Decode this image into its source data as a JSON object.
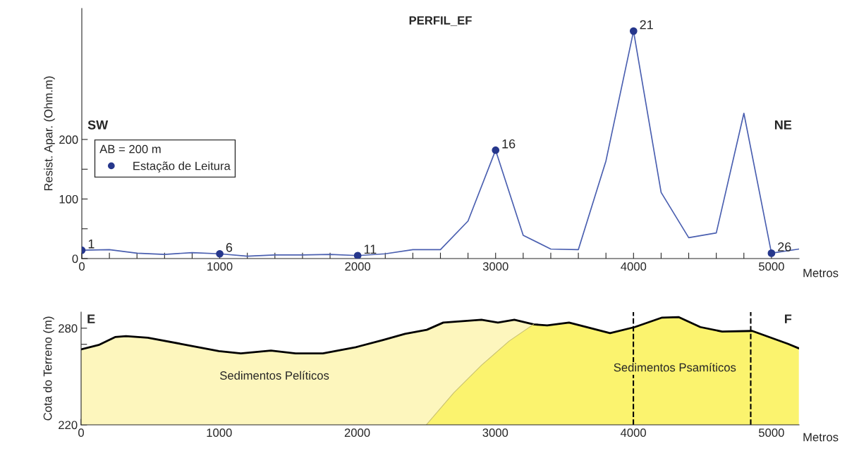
{
  "chart_data": [
    {
      "type": "line",
      "title": "PERFIL_EF",
      "ylabel": "Resist. Apar. (Ohm.m)",
      "xlabel": "Metros",
      "legend_title": "AB = 200 m",
      "legend": "left",
      "grid": false,
      "xlim": [
        0,
        5200
      ],
      "ylim": [
        0,
        420
      ],
      "xticks": [
        0,
        {
          "value": 200,
          "label": null
        },
        {
          "value": 400,
          "label": null
        },
        {
          "value": 600,
          "label": null
        },
        {
          "value": 800,
          "label": null
        },
        1000,
        {
          "value": 1200,
          "label": null
        },
        {
          "value": 1400,
          "label": null
        },
        {
          "value": 1600,
          "label": null
        },
        {
          "value": 1800,
          "label": null
        },
        2000,
        {
          "value": 2200,
          "label": null
        },
        {
          "value": 2400,
          "label": null
        },
        {
          "value": 2600,
          "label": null
        },
        {
          "value": 2800,
          "label": null
        },
        3000,
        {
          "value": 3200,
          "label": null
        },
        {
          "value": 3400,
          "label": null
        },
        {
          "value": 3600,
          "label": null
        },
        {
          "value": 3800,
          "label": null
        },
        4000,
        {
          "value": 4200,
          "label": null
        },
        {
          "value": 4400,
          "label": null
        },
        {
          "value": 4600,
          "label": null
        },
        {
          "value": 4800,
          "label": null
        },
        5000
      ],
      "yticks": [
        0,
        {
          "value": 50,
          "label": null
        },
        100,
        {
          "value": 150,
          "label": null
        },
        200
      ],
      "series": [
        {
          "type": "line",
          "color": "#4a5fb0",
          "marker": "none",
          "x": [
            0,
            200,
            400,
            600,
            800,
            1000,
            1200,
            1400,
            1600,
            1800,
            2000,
            2200,
            2400,
            2600,
            2800,
            3000,
            3200,
            3400,
            3600,
            3800,
            4000,
            4200,
            4400,
            4600,
            4800,
            5000,
            5200
          ],
          "values": [
            14,
            15,
            9,
            7,
            10,
            8,
            4,
            6,
            6,
            7,
            5,
            8,
            15,
            15,
            63,
            182,
            39,
            16,
            15,
            164,
            382,
            111,
            35,
            43,
            244,
            9,
            16
          ]
        },
        {
          "type": "scatter",
          "name": "Estação de Leitura",
          "color": "#26378c",
          "marker": "circle",
          "x": [
            0,
            1000,
            2000,
            3000,
            4000,
            5000
          ],
          "values": [
            14,
            8,
            5,
            182,
            382,
            9
          ]
        }
      ],
      "annotations": [
        {
          "text": "1",
          "x": 0,
          "y": 14
        },
        {
          "text": "6",
          "x": 1000,
          "y": 8
        },
        {
          "text": "11",
          "x": 2000,
          "y": 5
        },
        {
          "text": "16",
          "x": 3000,
          "y": 182
        },
        {
          "text": "21",
          "x": 4000,
          "y": 382
        },
        {
          "text": "26",
          "x": 5000,
          "y": 9
        },
        "SW",
        "NE"
      ]
    },
    {
      "type": "area",
      "ylabel": "Cota do Terreno (m)",
      "xlabel": "Metros",
      "grid": false,
      "legend": false,
      "xlim": [
        0,
        5200
      ],
      "ylim": [
        220,
        290
      ],
      "xticks": [
        0,
        1000,
        2000,
        3000,
        4000,
        5000
      ],
      "yticks": [
        220,
        {
          "value": 230,
          "label": null
        },
        {
          "value": 240,
          "label": null
        },
        {
          "value": 250,
          "label": null
        },
        {
          "value": 260,
          "label": null
        },
        {
          "value": 270,
          "label": null
        },
        280
      ],
      "series": [
        {
          "name": "Sedimentos Pelíticos",
          "color": "#fdf6bd",
          "x": [
            0,
            127,
            246,
            325,
            483,
            721,
            998,
            1157,
            1375,
            1553,
            1751,
            1989,
            2187,
            2346,
            2504,
            2623,
            2900,
            3019,
            3138,
            3277,
            3376,
            3534,
            3693,
            3831,
            4010,
            4208,
            4327,
            4485,
            4643,
            4861,
            5119,
            5198
          ],
          "values": [
            266.8,
            269.6,
            274.5,
            275.1,
            274.1,
            270.3,
            265.8,
            264.4,
            266.1,
            264.4,
            264.4,
            268.2,
            272.7,
            276.5,
            279,
            283.5,
            285.2,
            283.5,
            285.2,
            282.4,
            281.7,
            283.5,
            280,
            276.9,
            280.7,
            286.6,
            286.9,
            280.7,
            277.9,
            278.3,
            270.3,
            267.5
          ]
        },
        {
          "name": "Sedimentos Psamíticos",
          "color": "#fbf36e",
          "x": [
            2500,
            2700,
            2900,
            3100,
            3277,
            3376,
            3534,
            3693,
            3831,
            4010,
            4208,
            4327,
            4485,
            4643,
            4861,
            5119,
            5198
          ],
          "values": [
            220,
            240,
            257,
            272,
            282.4,
            281.7,
            283.5,
            280,
            276.9,
            280.7,
            286.6,
            286.9,
            280.7,
            277.9,
            278.3,
            270.3,
            267.5
          ]
        }
      ],
      "ref_lines": [
        {
          "axis": "x",
          "value": 4000,
          "color": "#000000",
          "line_style": "dashed"
        },
        {
          "axis": "x",
          "value": 4850,
          "color": "#000000",
          "line_style": "dashed"
        }
      ],
      "annotations": [
        "E",
        "F"
      ]
    }
  ]
}
